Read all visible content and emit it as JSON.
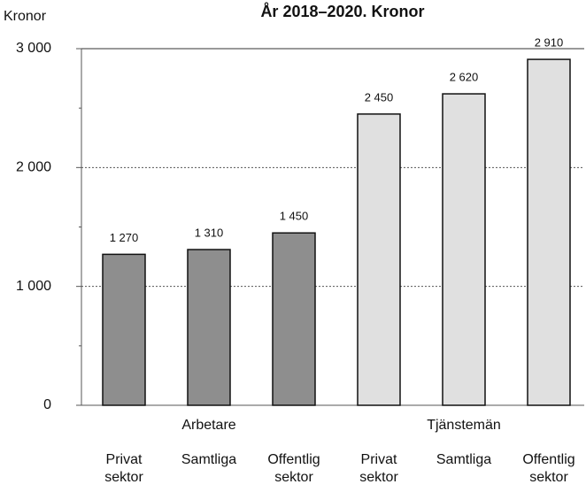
{
  "chart_data": {
    "type": "bar",
    "title": "År 2018–2020. Kronor",
    "ylabel": "Kronor",
    "groups": [
      {
        "name": "Arbetare",
        "color": "#8e8e8e",
        "categories": [
          "Privat\nsektor",
          "Samtliga",
          "Offentlig\nsektor"
        ],
        "values": [
          1270,
          1310,
          1450
        ],
        "value_labels": [
          "1 270",
          "1 310",
          "1 450"
        ]
      },
      {
        "name": "Tjänstemän",
        "color": "#e0e0e0",
        "categories": [
          "Privat\nsektor",
          "Samtliga",
          "Offentlig\nsektor"
        ],
        "values": [
          2450,
          2620,
          2910
        ],
        "value_labels": [
          "2 450",
          "2 620",
          "2 910"
        ]
      }
    ],
    "ylim": [
      0,
      3000
    ],
    "yticks": [
      0,
      {
        "value": 1000,
        "label": "1 000"
      },
      {
        "value": 2000,
        "label": "2 000"
      },
      {
        "value": 3000,
        "label": "3 000"
      }
    ],
    "yminorticks": [
      500,
      1500,
      2500
    ],
    "grid": true
  }
}
